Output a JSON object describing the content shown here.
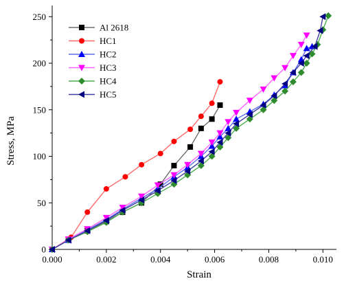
{
  "chart_data": {
    "type": "line",
    "title": "",
    "xlabel": "Strain",
    "ylabel": "Stress, MPa",
    "xlim": [
      0.0,
      0.0105
    ],
    "ylim": [
      0,
      262
    ],
    "xticks": [
      "0.000",
      "0.002",
      "0.004",
      "0.006",
      "0.008",
      "0.010"
    ],
    "yticks": [
      "0",
      "50",
      "100",
      "150",
      "200",
      "250"
    ],
    "grid": false,
    "legend_placement": "top-left",
    "series": [
      {
        "name": "Al 2618",
        "color": "#6d6d6d",
        "marker_color": "#000000",
        "marker": "square",
        "points": [
          [
            0.0,
            0
          ],
          [
            0.0006,
            10
          ],
          [
            0.0013,
            20
          ],
          [
            0.002,
            30
          ],
          [
            0.0026,
            40
          ],
          [
            0.0033,
            50
          ],
          [
            0.004,
            70
          ],
          [
            0.0045,
            90
          ],
          [
            0.0051,
            110
          ],
          [
            0.0055,
            130
          ],
          [
            0.0059,
            140
          ],
          [
            0.0062,
            155
          ]
        ]
      },
      {
        "name": "HC1",
        "color": "#ff6b6b",
        "marker_color": "#ff0000",
        "marker": "circle",
        "points": [
          [
            0.0,
            0
          ],
          [
            0.0007,
            13
          ],
          [
            0.0013,
            40
          ],
          [
            0.002,
            65
          ],
          [
            0.0027,
            78
          ],
          [
            0.0033,
            91
          ],
          [
            0.004,
            103
          ],
          [
            0.0045,
            116
          ],
          [
            0.0051,
            129
          ],
          [
            0.0055,
            143
          ],
          [
            0.0059,
            157
          ],
          [
            0.0062,
            180
          ]
        ]
      },
      {
        "name": "HC2",
        "color": "#5f6cf0",
        "marker_color": "#0000ff",
        "marker": "triangle-up",
        "points": [
          [
            0.0,
            0
          ],
          [
            0.0006,
            10
          ],
          [
            0.0013,
            21
          ],
          [
            0.002,
            32
          ],
          [
            0.0026,
            43
          ],
          [
            0.0033,
            55
          ],
          [
            0.0039,
            65
          ],
          [
            0.0045,
            78
          ],
          [
            0.005,
            88
          ],
          [
            0.0055,
            100
          ],
          [
            0.0059,
            111
          ],
          [
            0.0062,
            121
          ],
          [
            0.0065,
            130
          ],
          [
            0.0068,
            140
          ],
          [
            0.0073,
            148
          ],
          [
            0.0078,
            156
          ],
          [
            0.0082,
            166
          ],
          [
            0.0086,
            176
          ],
          [
            0.0089,
            190
          ],
          [
            0.0092,
            204
          ],
          [
            0.0094,
            216
          ],
          [
            0.0096,
            218
          ]
        ]
      },
      {
        "name": "HC3",
        "color": "#ff66ff",
        "marker_color": "#ff00ff",
        "marker": "triangle-down",
        "points": [
          [
            0.0,
            0
          ],
          [
            0.0006,
            11
          ],
          [
            0.0013,
            22
          ],
          [
            0.002,
            34
          ],
          [
            0.0026,
            45
          ],
          [
            0.0033,
            57
          ],
          [
            0.0039,
            69
          ],
          [
            0.0045,
            80
          ],
          [
            0.005,
            91
          ],
          [
            0.0055,
            103
          ],
          [
            0.0059,
            115
          ],
          [
            0.0062,
            125
          ],
          [
            0.0065,
            137
          ],
          [
            0.0068,
            147
          ],
          [
            0.0073,
            160
          ],
          [
            0.0078,
            172
          ],
          [
            0.0082,
            184
          ],
          [
            0.0086,
            195
          ],
          [
            0.0089,
            208
          ],
          [
            0.0092,
            220
          ],
          [
            0.0094,
            230
          ]
        ]
      },
      {
        "name": "HC4",
        "color": "#4caf50",
        "marker_color": "#2e8b2e",
        "marker": "diamond",
        "points": [
          [
            0.0,
            0
          ],
          [
            0.0006,
            10
          ],
          [
            0.0013,
            19
          ],
          [
            0.002,
            29
          ],
          [
            0.0026,
            40
          ],
          [
            0.0033,
            50
          ],
          [
            0.0039,
            60
          ],
          [
            0.0045,
            70
          ],
          [
            0.005,
            80
          ],
          [
            0.0055,
            90
          ],
          [
            0.0059,
            100
          ],
          [
            0.0062,
            110
          ],
          [
            0.0065,
            120
          ],
          [
            0.0068,
            130
          ],
          [
            0.0073,
            140
          ],
          [
            0.0078,
            150
          ],
          [
            0.0082,
            160
          ],
          [
            0.0086,
            170
          ],
          [
            0.0089,
            180
          ],
          [
            0.0092,
            190
          ],
          [
            0.0094,
            200
          ],
          [
            0.0096,
            210
          ],
          [
            0.0098,
            220
          ],
          [
            0.01,
            236
          ],
          [
            0.0102,
            251
          ]
        ]
      },
      {
        "name": "HC5",
        "color": "#3f3fa0",
        "marker_color": "#000080",
        "marker": "triangle-left",
        "points": [
          [
            0.0,
            0
          ],
          [
            0.0006,
            10
          ],
          [
            0.0013,
            20
          ],
          [
            0.002,
            31
          ],
          [
            0.0026,
            42
          ],
          [
            0.0033,
            53
          ],
          [
            0.0039,
            63
          ],
          [
            0.0045,
            74
          ],
          [
            0.005,
            84
          ],
          [
            0.0055,
            95
          ],
          [
            0.0059,
            105
          ],
          [
            0.0062,
            115
          ],
          [
            0.0065,
            125
          ],
          [
            0.0068,
            135
          ],
          [
            0.0073,
            145
          ],
          [
            0.0078,
            155
          ],
          [
            0.0082,
            165
          ],
          [
            0.0086,
            178
          ],
          [
            0.0089,
            190
          ],
          [
            0.0092,
            200
          ],
          [
            0.0094,
            208
          ],
          [
            0.0097,
            218
          ],
          [
            0.0099,
            235
          ],
          [
            0.01,
            250
          ]
        ]
      }
    ]
  }
}
